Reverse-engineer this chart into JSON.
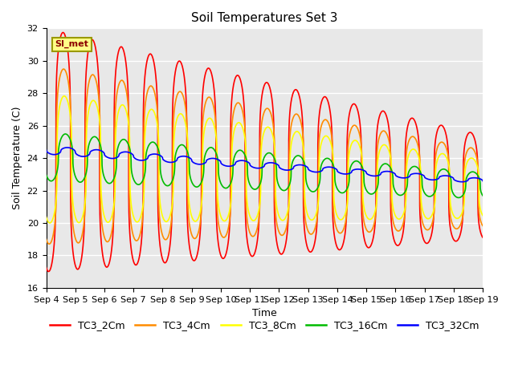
{
  "title": "Soil Temperatures Set 3",
  "xlabel": "Time",
  "ylabel": "Soil Temperature (C)",
  "ylim": [
    16,
    32
  ],
  "yticks": [
    16,
    18,
    20,
    22,
    24,
    26,
    28,
    30,
    32
  ],
  "xtick_labels": [
    "Sep 4",
    "Sep 5",
    "Sep 6",
    "Sep 7",
    "Sep 8",
    "Sep 9",
    "Sep 10",
    "Sep 11",
    "Sep 12",
    "Sep 13",
    "Sep 14",
    "Sep 15",
    "Sep 16",
    "Sep 17",
    "Sep 18",
    "Sep 19"
  ],
  "series": {
    "TC3_2Cm": {
      "color": "#FF0000"
    },
    "TC3_4Cm": {
      "color": "#FF8C00"
    },
    "TC3_8Cm": {
      "color": "#FFFF00"
    },
    "TC3_16Cm": {
      "color": "#00BB00"
    },
    "TC3_32Cm": {
      "color": "#0000FF"
    }
  },
  "background_color": "#DCDCDC",
  "plot_bg_color": "#E8E8E8",
  "annotation_text": "SI_met",
  "title_fontsize": 11,
  "axis_fontsize": 9,
  "tick_fontsize": 8,
  "legend_fontsize": 9,
  "linewidth": 1.2
}
